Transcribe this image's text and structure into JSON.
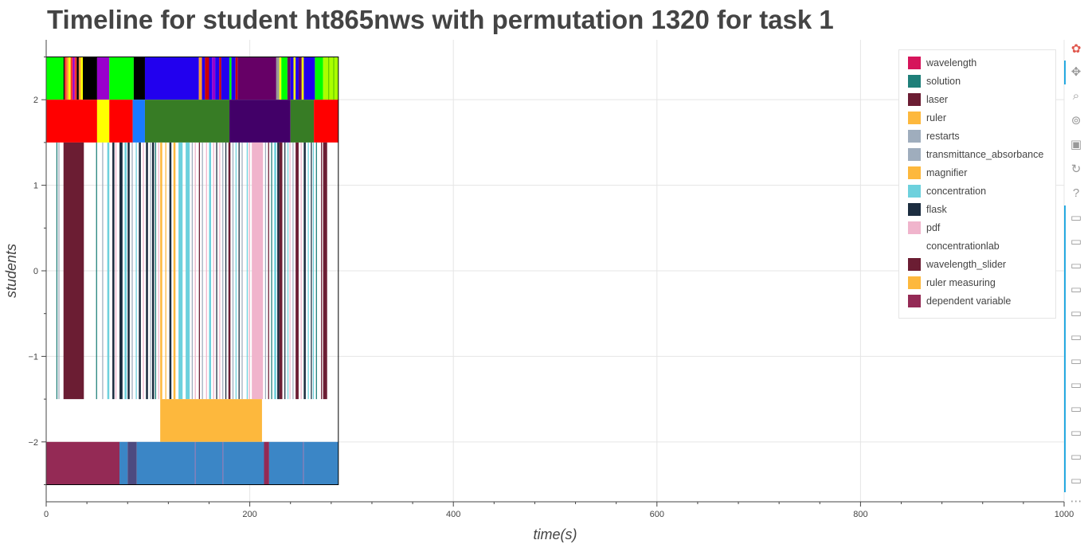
{
  "page": {
    "title": "Timeline for student ht865nws with permutation 1320 for task 1"
  },
  "chart_data": {
    "type": "timeline",
    "title": "Timeline for student ht865nws with permutation 1320 for task 1",
    "xlabel": "time(s)",
    "ylabel": "students",
    "xlim": [
      0,
      1000
    ],
    "ylim": [
      -2.7,
      2.7
    ],
    "xticks": [
      0,
      200,
      400,
      600,
      800,
      1000
    ],
    "xtick_labels": [
      "0",
      "200",
      "400",
      "600",
      "800",
      "1000"
    ],
    "yticks": [
      2,
      1,
      0,
      -1,
      -2
    ],
    "ytick_labels": [
      "2",
      "1",
      "0",
      "−1",
      "−2"
    ],
    "grid": true,
    "legend_position": "top-right",
    "legend": [
      {
        "label": "wavelength",
        "color": "#d6155b"
      },
      {
        "label": "solution",
        "color": "#1f7f79"
      },
      {
        "label": "laser",
        "color": "#6b1d33"
      },
      {
        "label": "ruler",
        "color": "#fdb83d"
      },
      {
        "label": "restarts",
        "color": "#9fadbd"
      },
      {
        "label": "transmittance_absorbance",
        "color": "#9fadbd"
      },
      {
        "label": "magnifier",
        "color": "#fdb83d"
      },
      {
        "label": "concentration",
        "color": "#6dd1dd"
      },
      {
        "label": "flask",
        "color": "#1c2d40"
      },
      {
        "label": "pdf",
        "color": "#f0b4cc"
      },
      {
        "label": "concentrationlab",
        "color": "#ffffff"
      },
      {
        "label": "wavelength_slider",
        "color": "#6b1d33"
      },
      {
        "label": "ruler measuring",
        "color": "#fdb83d"
      },
      {
        "label": "dependent variable",
        "color": "#942a55"
      }
    ],
    "rows": [
      {
        "y_range": [
          2,
          2.5
        ],
        "segments": [
          {
            "start": 0,
            "end": 17,
            "color": "#00ff00"
          },
          {
            "start": 17,
            "end": 18,
            "color": "#000000"
          },
          {
            "start": 18,
            "end": 20,
            "color": "#ff3333"
          },
          {
            "start": 20,
            "end": 22,
            "color": "#ff9933"
          },
          {
            "start": 22,
            "end": 24,
            "color": "#ffff00"
          },
          {
            "start": 24,
            "end": 26,
            "color": "#ff3333"
          },
          {
            "start": 26,
            "end": 28,
            "color": "#9900cc"
          },
          {
            "start": 28,
            "end": 30,
            "color": "#ff3333"
          },
          {
            "start": 30,
            "end": 32,
            "color": "#000000"
          },
          {
            "start": 32,
            "end": 34,
            "color": "#ff9933"
          },
          {
            "start": 34,
            "end": 36,
            "color": "#ffff00"
          },
          {
            "start": 36,
            "end": 50,
            "color": "#000000"
          },
          {
            "start": 50,
            "end": 62,
            "color": "#9900cc"
          },
          {
            "start": 62,
            "end": 86,
            "color": "#00ff00"
          },
          {
            "start": 86,
            "end": 97,
            "color": "#000000"
          },
          {
            "start": 97,
            "end": 150,
            "color": "#2200ee"
          },
          {
            "start": 150,
            "end": 153,
            "color": "#ff9933"
          },
          {
            "start": 153,
            "end": 156,
            "color": "#2200ee"
          },
          {
            "start": 156,
            "end": 160,
            "color": "#cc0000"
          },
          {
            "start": 160,
            "end": 163,
            "color": "#2200ee"
          },
          {
            "start": 163,
            "end": 166,
            "color": "#9900cc"
          },
          {
            "start": 166,
            "end": 170,
            "color": "#2200ee"
          },
          {
            "start": 170,
            "end": 172,
            "color": "#cc0000"
          },
          {
            "start": 172,
            "end": 180,
            "color": "#2200ee"
          },
          {
            "start": 180,
            "end": 182,
            "color": "#00ff00"
          },
          {
            "start": 182,
            "end": 186,
            "color": "#2200ee"
          },
          {
            "start": 186,
            "end": 188,
            "color": "#cc0000"
          },
          {
            "start": 188,
            "end": 226,
            "color": "#660066"
          },
          {
            "start": 226,
            "end": 229,
            "color": "#999999"
          },
          {
            "start": 229,
            "end": 231,
            "color": "#ffff00"
          },
          {
            "start": 231,
            "end": 237,
            "color": "#00ff00"
          },
          {
            "start": 237,
            "end": 240,
            "color": "#660066"
          },
          {
            "start": 240,
            "end": 243,
            "color": "#2200ee"
          },
          {
            "start": 243,
            "end": 245,
            "color": "#ffff00"
          },
          {
            "start": 245,
            "end": 248,
            "color": "#2200ee"
          },
          {
            "start": 248,
            "end": 251,
            "color": "#660066"
          },
          {
            "start": 251,
            "end": 253,
            "color": "#ffff00"
          },
          {
            "start": 253,
            "end": 264,
            "color": "#2200ee"
          },
          {
            "start": 264,
            "end": 272,
            "color": "#00ff00"
          },
          {
            "start": 272,
            "end": 287,
            "color": "#aaff00"
          },
          {
            "start": 277,
            "end": 278,
            "color": "#66cc00"
          },
          {
            "start": 282,
            "end": 283,
            "color": "#66cc00"
          }
        ]
      },
      {
        "y_range": [
          1.5,
          2
        ],
        "segments": [
          {
            "start": 0,
            "end": 50,
            "color": "#ff0000"
          },
          {
            "start": 50,
            "end": 62,
            "color": "#ffff00"
          },
          {
            "start": 62,
            "end": 85,
            "color": "#ff0000"
          },
          {
            "start": 85,
            "end": 97,
            "color": "#1a7aff"
          },
          {
            "start": 97,
            "end": 180,
            "color": "#377c25"
          },
          {
            "start": 180,
            "end": 240,
            "color": "#420068"
          },
          {
            "start": 240,
            "end": 263,
            "color": "#377c25"
          },
          {
            "start": 263,
            "end": 287,
            "color": "#ff0000"
          }
        ]
      },
      {
        "y_range": [
          -1.5,
          1.5
        ],
        "segments": [
          {
            "start": 10,
            "end": 11,
            "color": "#1f7f79"
          },
          {
            "start": 12,
            "end": 13,
            "color": "#9fadbd"
          },
          {
            "start": 17,
            "end": 37,
            "color": "#6b1d33"
          },
          {
            "start": 49,
            "end": 50,
            "color": "#1f7f79"
          },
          {
            "start": 55,
            "end": 56,
            "color": "#9fadbd"
          },
          {
            "start": 60,
            "end": 62,
            "color": "#6dd1dd"
          },
          {
            "start": 65,
            "end": 67,
            "color": "#1c2d40"
          },
          {
            "start": 68,
            "end": 69,
            "color": "#f0b4cc"
          },
          {
            "start": 72,
            "end": 75,
            "color": "#1c2d40"
          },
          {
            "start": 77,
            "end": 79,
            "color": "#6dd1dd"
          },
          {
            "start": 80,
            "end": 82,
            "color": "#1c2d40"
          },
          {
            "start": 84,
            "end": 85,
            "color": "#9fadbd"
          },
          {
            "start": 88,
            "end": 89,
            "color": "#6dd1dd"
          },
          {
            "start": 91,
            "end": 93,
            "color": "#1c2d40"
          },
          {
            "start": 95,
            "end": 96,
            "color": "#f0b4cc"
          },
          {
            "start": 98,
            "end": 100,
            "color": "#1c2d40"
          },
          {
            "start": 102,
            "end": 103,
            "color": "#9fadbd"
          },
          {
            "start": 104,
            "end": 106,
            "color": "#1c2d40"
          },
          {
            "start": 107,
            "end": 108,
            "color": "#1f7f79"
          },
          {
            "start": 110,
            "end": 111,
            "color": "#f0b4cc"
          },
          {
            "start": 112,
            "end": 114,
            "color": "#fdb83d"
          },
          {
            "start": 117,
            "end": 118,
            "color": "#fdb83d"
          },
          {
            "start": 121,
            "end": 123,
            "color": "#1c2d40"
          },
          {
            "start": 125,
            "end": 127,
            "color": "#fdb83d"
          },
          {
            "start": 130,
            "end": 134,
            "color": "#6dd1dd"
          },
          {
            "start": 137,
            "end": 141,
            "color": "#6dd1dd"
          },
          {
            "start": 143,
            "end": 144,
            "color": "#9fadbd"
          },
          {
            "start": 146,
            "end": 147,
            "color": "#f0b4cc"
          },
          {
            "start": 150,
            "end": 151,
            "color": "#6b1d33"
          },
          {
            "start": 153,
            "end": 154,
            "color": "#9fadbd"
          },
          {
            "start": 157,
            "end": 158,
            "color": "#f0b4cc"
          },
          {
            "start": 160,
            "end": 162,
            "color": "#6dd1dd"
          },
          {
            "start": 164,
            "end": 165,
            "color": "#f0b4cc"
          },
          {
            "start": 167,
            "end": 168,
            "color": "#1c2d40"
          },
          {
            "start": 170,
            "end": 171,
            "color": "#f0b4cc"
          },
          {
            "start": 173,
            "end": 174,
            "color": "#9fadbd"
          },
          {
            "start": 176,
            "end": 177,
            "color": "#1c2d40"
          },
          {
            "start": 179,
            "end": 181,
            "color": "#6b1d33"
          },
          {
            "start": 183,
            "end": 184,
            "color": "#9fadbd"
          },
          {
            "start": 186,
            "end": 187,
            "color": "#6dd1dd"
          },
          {
            "start": 189,
            "end": 190,
            "color": "#1c2d40"
          },
          {
            "start": 192,
            "end": 193,
            "color": "#9fadbd"
          },
          {
            "start": 197,
            "end": 198,
            "color": "#6dd1dd"
          },
          {
            "start": 199,
            "end": 200,
            "color": "#f0b4cc"
          },
          {
            "start": 202,
            "end": 213,
            "color": "#f0b4cc"
          },
          {
            "start": 215,
            "end": 216,
            "color": "#9fadbd"
          },
          {
            "start": 218,
            "end": 219,
            "color": "#6b1d33"
          },
          {
            "start": 221,
            "end": 222,
            "color": "#1f7f79"
          },
          {
            "start": 224,
            "end": 226,
            "color": "#6dd1dd"
          },
          {
            "start": 227,
            "end": 229,
            "color": "#1c2d40"
          },
          {
            "start": 229,
            "end": 232,
            "color": "#6b1d33"
          },
          {
            "start": 234,
            "end": 235,
            "color": "#1c2d40"
          },
          {
            "start": 237,
            "end": 238,
            "color": "#6dd1dd"
          },
          {
            "start": 239,
            "end": 240,
            "color": "#f0b4cc"
          },
          {
            "start": 242,
            "end": 243,
            "color": "#9fadbd"
          },
          {
            "start": 245,
            "end": 248,
            "color": "#6b1d33"
          },
          {
            "start": 250,
            "end": 251,
            "color": "#f0b4cc"
          },
          {
            "start": 253,
            "end": 255,
            "color": "#1c2d40"
          },
          {
            "start": 257,
            "end": 258,
            "color": "#6dd1dd"
          },
          {
            "start": 260,
            "end": 261,
            "color": "#1c2d40"
          },
          {
            "start": 262,
            "end": 263,
            "color": "#6dd1dd"
          },
          {
            "start": 265,
            "end": 266,
            "color": "#1f7f79"
          },
          {
            "start": 270,
            "end": 271,
            "color": "#6b1d33"
          },
          {
            "start": 272,
            "end": 276,
            "color": "#6b1d33"
          }
        ]
      },
      {
        "y_range": [
          -2,
          -1.5
        ],
        "segments": [
          {
            "start": 112,
            "end": 212,
            "color": "#fdb83d"
          }
        ]
      },
      {
        "y_range": [
          -2.5,
          -2
        ],
        "segments": [
          {
            "start": 0,
            "end": 72,
            "color": "#942a55"
          },
          {
            "start": 72,
            "end": 80,
            "color": "#3b86c6"
          },
          {
            "start": 80,
            "end": 89,
            "color": "#4d4a80"
          },
          {
            "start": 89,
            "end": 146,
            "color": "#3b86c6"
          },
          {
            "start": 146,
            "end": 147,
            "color": "#7a6fb0"
          },
          {
            "start": 147,
            "end": 173,
            "color": "#3b86c6"
          },
          {
            "start": 173,
            "end": 174,
            "color": "#7a6fb0"
          },
          {
            "start": 174,
            "end": 214,
            "color": "#3b86c6"
          },
          {
            "start": 214,
            "end": 219,
            "color": "#942a55"
          },
          {
            "start": 219,
            "end": 252,
            "color": "#3b86c6"
          },
          {
            "start": 252,
            "end": 253,
            "color": "#7a6fb0"
          },
          {
            "start": 253,
            "end": 287,
            "color": "#3b86c6"
          }
        ]
      }
    ],
    "data_extent": [
      0,
      287
    ]
  },
  "toolbar": {
    "tools": [
      {
        "name": "bokeh-logo-icon",
        "glyph": "✿"
      },
      {
        "name": "pan-tool-icon",
        "glyph": "✥"
      },
      {
        "name": "box-zoom-tool-icon",
        "glyph": "⌕"
      },
      {
        "name": "wheel-zoom-tool-icon",
        "glyph": "⊚"
      },
      {
        "name": "save-tool-icon",
        "glyph": "▣"
      },
      {
        "name": "reset-tool-icon",
        "glyph": "↻"
      },
      {
        "name": "help-tool-icon",
        "glyph": "?"
      },
      {
        "name": "hover-tool-icon",
        "glyph": "▭"
      },
      {
        "name": "hover-tool-icon",
        "glyph": "▭"
      },
      {
        "name": "hover-tool-icon",
        "glyph": "▭"
      },
      {
        "name": "hover-tool-icon",
        "glyph": "▭"
      },
      {
        "name": "hover-tool-icon",
        "glyph": "▭"
      },
      {
        "name": "hover-tool-icon",
        "glyph": "▭"
      },
      {
        "name": "hover-tool-icon",
        "glyph": "▭"
      },
      {
        "name": "hover-tool-icon",
        "glyph": "▭"
      },
      {
        "name": "hover-tool-icon",
        "glyph": "▭"
      },
      {
        "name": "hover-tool-icon",
        "glyph": "▭"
      },
      {
        "name": "hover-tool-icon",
        "glyph": "▭"
      },
      {
        "name": "hover-tool-icon",
        "glyph": "▭"
      },
      {
        "name": "more-tools-icon",
        "glyph": "⋯"
      }
    ]
  },
  "colors": {
    "grid": "#e5e5e5",
    "axis": "#444444",
    "toolbar_active": "#26aae1"
  }
}
